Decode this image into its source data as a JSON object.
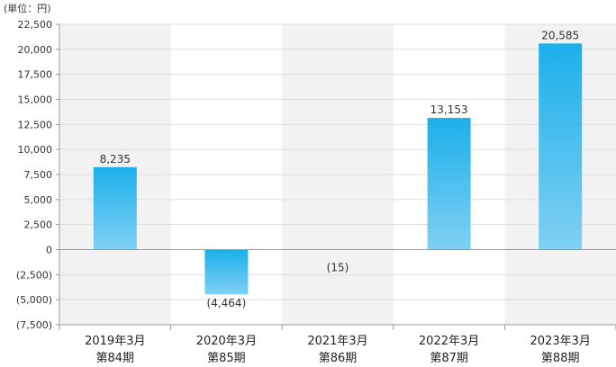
{
  "unit_label": "(単位：円)",
  "chart_data": {
    "type": "bar",
    "categories": [
      [
        "2019年3月",
        "第84期"
      ],
      [
        "2020年3月",
        "第85期"
      ],
      [
        "2021年3月",
        "第86期"
      ],
      [
        "2022年3月",
        "第87期"
      ],
      [
        "2023年3月",
        "第88期"
      ]
    ],
    "values": [
      8235,
      -4464,
      -15,
      13153,
      20585
    ],
    "data_labels": [
      "8,235",
      "(4,464)",
      "(15)",
      "13,153",
      "20,585"
    ],
    "ylim": [
      -7500,
      22500
    ],
    "yticks": [
      22500,
      20000,
      17500,
      15000,
      12500,
      10000,
      7500,
      5000,
      2500,
      0,
      -2500,
      -5000,
      -7500
    ],
    "ytick_labels": [
      "22,500",
      "20,000",
      "17,500",
      "15,000",
      "12,500",
      "10,000",
      "7,500",
      "5,000",
      "2,500",
      "0",
      "(2,500)",
      "(5,000)",
      "(7,500)"
    ],
    "grid": true,
    "bar_color_top": "#1cb0ea",
    "bar_color_bottom": "#7fd0f2",
    "band_color": "#f2f2f2"
  }
}
